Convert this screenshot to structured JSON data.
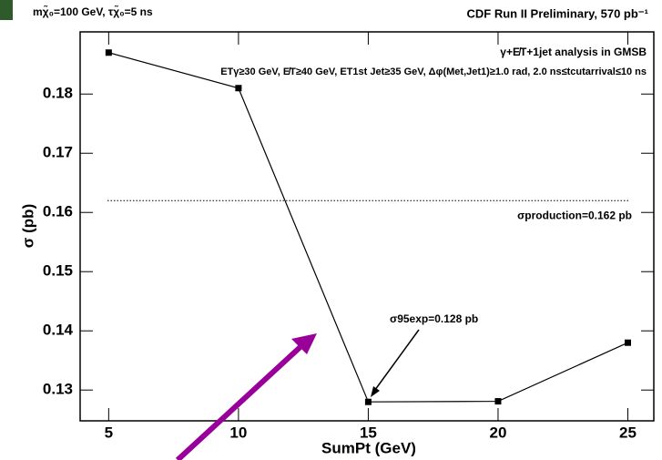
{
  "chart_data": {
    "type": "line",
    "title": "CDF Run II Preliminary, 570 pb⁻¹",
    "subtitle": "mχ̃₀=100 GeV, τχ̃₀=5 ns",
    "x_label": "SumPt (GeV)",
    "y_label": "σ (pb)",
    "annotations": [
      "γ+E̸T+1jet analysis in GMSB",
      "ETγ≥30 GeV, E̸T≥40 GeV, ET1st Jet≥35 GeV, Δφ(Met,Jet1)≥1.0 rad, 2.0 ns≤tcutarrival≤10 ns",
      "σ95exp=0.128 pb"
    ],
    "reference_lines": [
      {
        "value": 0.162,
        "label": "σproduction=0.162 pb"
      }
    ],
    "x": [
      5,
      10,
      15,
      20,
      25
    ],
    "series": [
      {
        "values": [
          0.187,
          0.181,
          0.128,
          0.1281,
          0.138
        ],
        "color": "#000000"
      }
    ],
    "xlim": [
      3.9,
      26
    ],
    "ylim": [
      0.1248,
      0.1905
    ],
    "xticks": [
      5,
      10,
      15,
      20,
      25
    ],
    "yticks": [
      0.13,
      0.14,
      0.15,
      0.16,
      0.17,
      0.18
    ]
  }
}
